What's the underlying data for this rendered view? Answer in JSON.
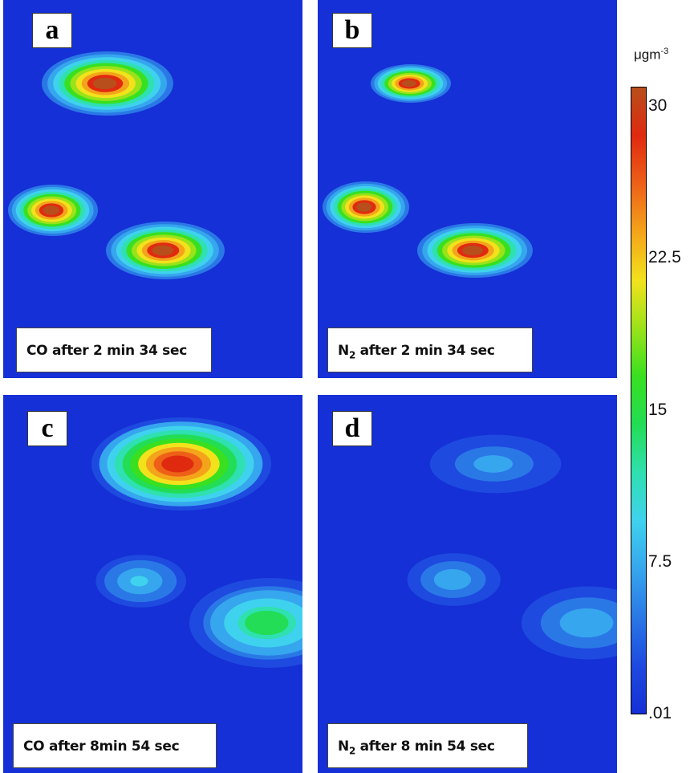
{
  "panels": [
    {
      "id": "a",
      "letter": "a",
      "species": "CO",
      "caption_rest": " after 2 min 34 sec"
    },
    {
      "id": "b",
      "letter": "b",
      "species": "N",
      "species_sub": "2",
      "caption_rest": " after 2 min 34 sec"
    },
    {
      "id": "c",
      "letter": "c",
      "species": "CO",
      "caption_rest": " after 8min 54 sec"
    },
    {
      "id": "d",
      "letter": "d",
      "species": "N",
      "species_sub": "2",
      "caption_rest": " after 8 min 54 sec"
    }
  ],
  "colorbar": {
    "unit": "μgm",
    "unit_exp": "-3",
    "ticks": [
      {
        "label": "30",
        "value": 30
      },
      {
        "label": "22.5",
        "value": 22.5
      },
      {
        "label": "15",
        "value": 15
      },
      {
        "label": "7.5",
        "value": 7.5
      },
      {
        "label": ".01",
        "value": 0.01
      }
    ]
  },
  "chart_data": [
    {
      "type": "heatmap",
      "panel": "a",
      "title": "CO after 2 min 34 sec",
      "zlim": [
        0.01,
        31
      ],
      "plumes": [
        {
          "peak": 31
        },
        {
          "peak": 31
        },
        {
          "peak": 31
        }
      ]
    },
    {
      "type": "heatmap",
      "panel": "b",
      "title": "N2 after 2 min 34 sec",
      "zlim": [
        0.01,
        31
      ],
      "plumes": [
        {
          "peak": 31
        },
        {
          "peak": 31
        },
        {
          "peak": 31
        }
      ]
    },
    {
      "type": "heatmap",
      "panel": "c",
      "title": "CO after 8min 54 sec",
      "zlim": [
        0.01,
        31
      ],
      "plumes": [
        {
          "peak": 29
        },
        {
          "peak": 9
        },
        {
          "peak": 15
        }
      ]
    },
    {
      "type": "heatmap",
      "panel": "d",
      "title": "N2 after 8 min 54 sec",
      "zlim": [
        0.01,
        31
      ],
      "plumes": [
        {
          "peak": 7
        },
        {
          "peak": 8
        },
        {
          "peak": 7.5
        }
      ]
    }
  ],
  "colors": {
    "background": "#1530d6",
    "scale": [
      "#1530d6",
      "#1e4ae0",
      "#2a78e6",
      "#36a6ee",
      "#3fd2ee",
      "#2fe0b0",
      "#22dd55",
      "#38e020",
      "#9ae21a",
      "#f2e21c",
      "#f4a41a",
      "#ee6018",
      "#e02a10",
      "#b84e1c"
    ]
  }
}
